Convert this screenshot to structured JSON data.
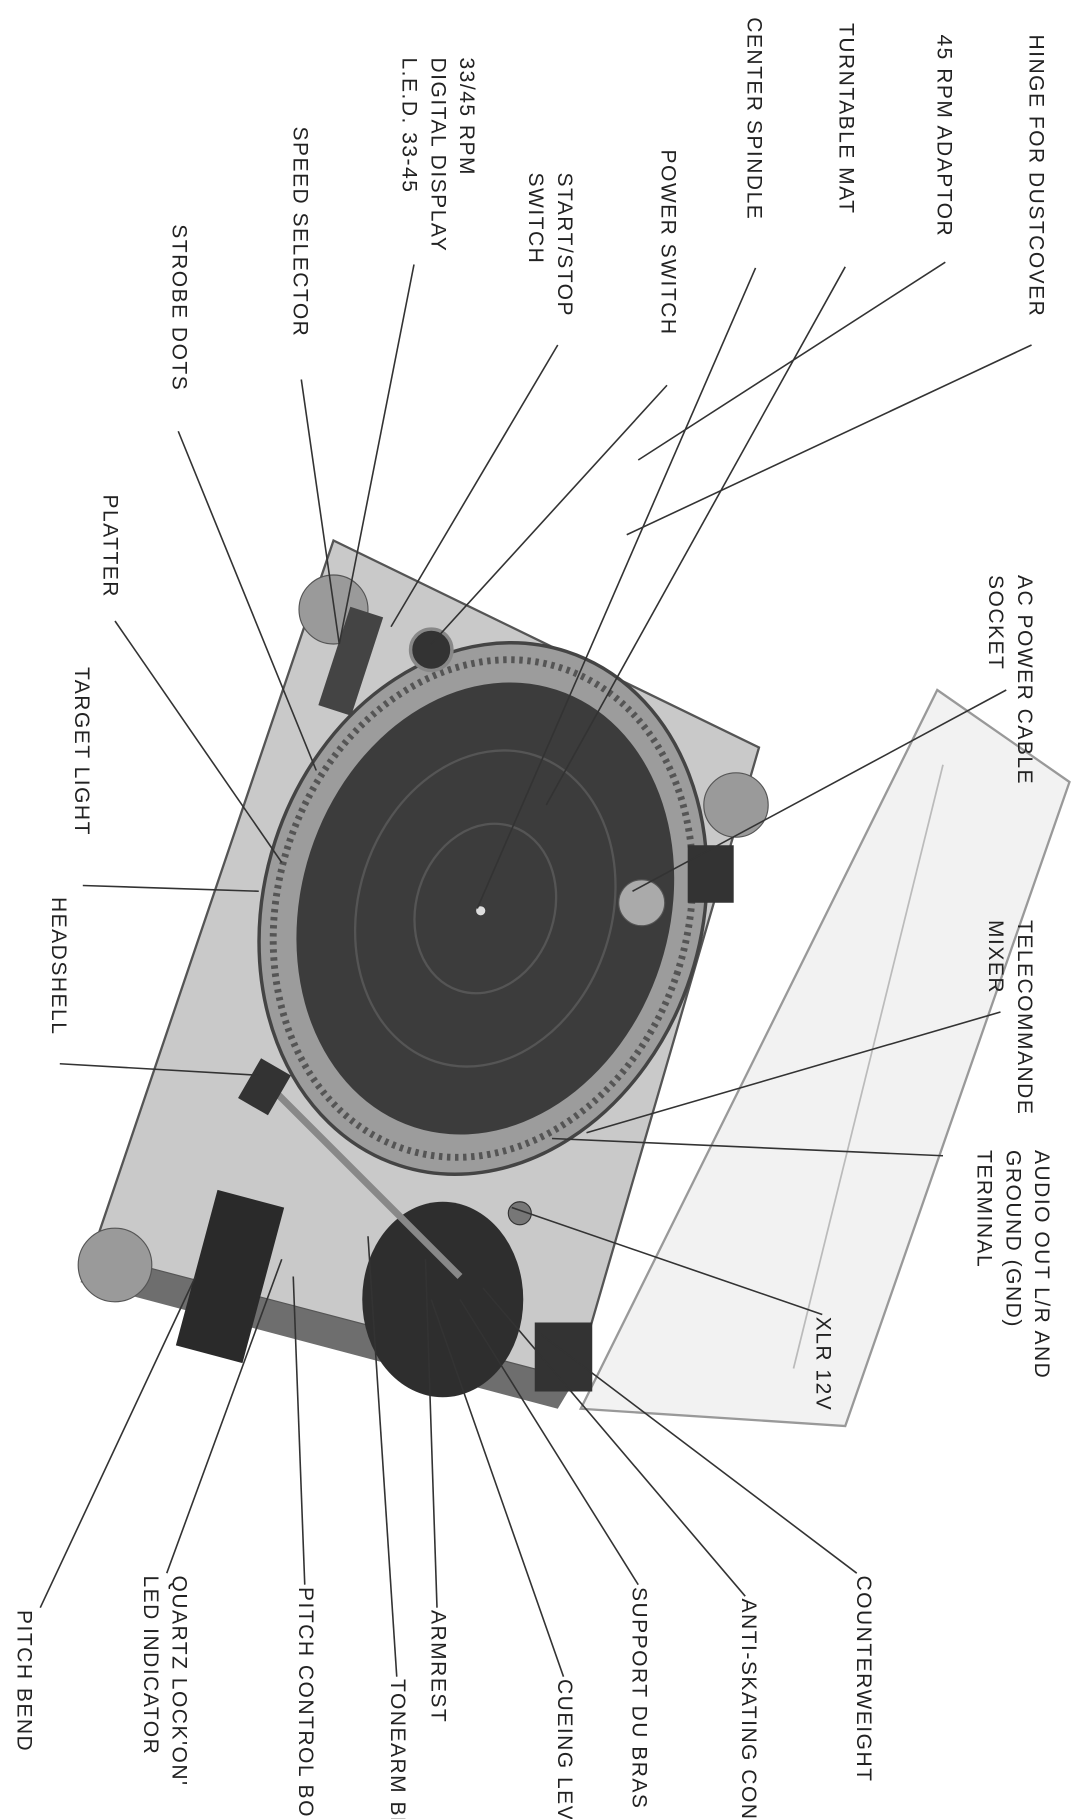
{
  "labels": [
    {
      "lines": [
        "HINGE FOR DUSTCOVER"
      ]
    },
    {
      "lines": [
        "45 RPM ADAPTOR"
      ]
    },
    {
      "lines": [
        "TURNTABLE MAT"
      ]
    },
    {
      "lines": [
        "CENTER SPINDLE"
      ]
    },
    {
      "lines": [
        "POWER SWITCH"
      ]
    },
    {
      "lines": [
        "START/STOP",
        "SWITCH"
      ]
    },
    {
      "lines": [
        "33/45 RPM",
        "DIGITAL DISPLAY",
        "L.E.D. 33-45"
      ]
    },
    {
      "lines": [
        "SPEED SELECTOR"
      ]
    },
    {
      "lines": [
        "STROBE DOTS"
      ]
    },
    {
      "lines": [
        "PLATTER"
      ]
    },
    {
      "lines": [
        "TARGET LIGHT"
      ]
    },
    {
      "lines": [
        "HEADSHELL"
      ]
    },
    {
      "lines": [
        "PITCH BEND"
      ]
    },
    {
      "lines": [
        "AC POWER CABLE",
        "SOCKET"
      ]
    },
    {
      "lines": [
        "TELECOMMANDE",
        "MIXER"
      ]
    },
    {
      "lines": [
        "AUDIO OUT L/R AND",
        "GROUND (GND)",
        "TERMINAL"
      ]
    },
    {
      "lines": [
        "XLR 12V"
      ]
    },
    {
      "lines": [
        "COUNTERWEIGHT"
      ]
    },
    {
      "lines": [
        "ANTI-SKATING CONTROL"
      ]
    },
    {
      "lines": [
        "SUPPORT DU BRAS"
      ]
    },
    {
      "lines": [
        "CUEING LEVER"
      ]
    },
    {
      "lines": [
        "ARMREST"
      ]
    },
    {
      "lines": [
        "TONEARM BRAS"
      ]
    },
    {
      "lines": [
        "PITCH CONTROL BOUTON"
      ]
    },
    {
      "lines": [
        "QUARTZ LOCK'ON'",
        "LED INDICATOR"
      ]
    }
  ]
}
